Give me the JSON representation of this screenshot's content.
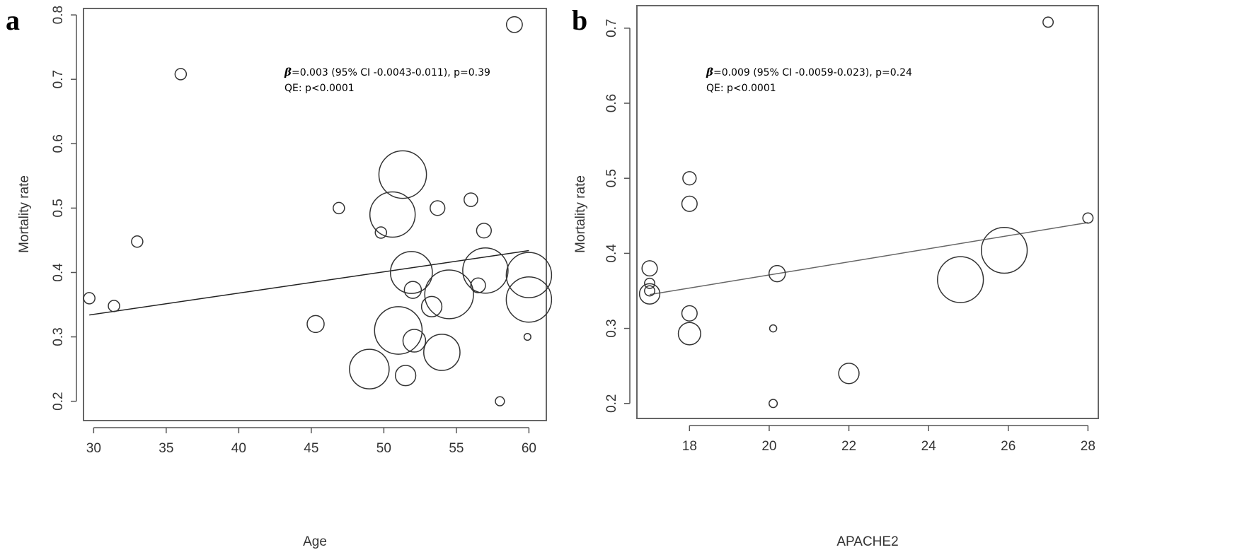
{
  "chart_data": [
    {
      "type": "scatter",
      "panel_label": "a",
      "xlabel": "Age",
      "ylabel": "Mortality rate",
      "xlim": [
        29.3,
        61.2
      ],
      "ylim": [
        0.17,
        0.81
      ],
      "xticks": [
        30,
        35,
        40,
        45,
        50,
        55,
        60
      ],
      "yticks": [
        0.2,
        0.3,
        0.4,
        0.5,
        0.6,
        0.7,
        0.8
      ],
      "annotation": {
        "beta_symbol": "β",
        "beta_text": "=0.003 (95% CI -0.0043-0.011), p=0.39",
        "qe_text": "QE: p<0.0001"
      },
      "fit_line": {
        "x": [
          29.7,
          60.0
        ],
        "y": [
          0.334,
          0.434
        ],
        "color": "#222222"
      },
      "points": [
        {
          "x": 29.7,
          "y": 0.36,
          "size": 1.0
        },
        {
          "x": 31.4,
          "y": 0.348,
          "size": 1.0
        },
        {
          "x": 33.0,
          "y": 0.448,
          "size": 1.0
        },
        {
          "x": 36.0,
          "y": 0.708,
          "size": 1.0
        },
        {
          "x": 45.3,
          "y": 0.32,
          "size": 1.5
        },
        {
          "x": 46.9,
          "y": 0.5,
          "size": 1.0
        },
        {
          "x": 49.0,
          "y": 0.25,
          "size": 3.5
        },
        {
          "x": 49.8,
          "y": 0.462,
          "size": 1.0
        },
        {
          "x": 50.6,
          "y": 0.49,
          "size": 4.0
        },
        {
          "x": 51.0,
          "y": 0.31,
          "size": 4.2
        },
        {
          "x": 51.3,
          "y": 0.552,
          "size": 4.2
        },
        {
          "x": 51.5,
          "y": 0.24,
          "size": 1.8
        },
        {
          "x": 51.9,
          "y": 0.4,
          "size": 3.7
        },
        {
          "x": 52.0,
          "y": 0.373,
          "size": 1.5
        },
        {
          "x": 52.1,
          "y": 0.294,
          "size": 2.0
        },
        {
          "x": 53.3,
          "y": 0.347,
          "size": 1.8
        },
        {
          "x": 53.7,
          "y": 0.5,
          "size": 1.3
        },
        {
          "x": 54.0,
          "y": 0.276,
          "size": 3.2
        },
        {
          "x": 54.5,
          "y": 0.366,
          "size": 4.3
        },
        {
          "x": 56.0,
          "y": 0.513,
          "size": 1.2
        },
        {
          "x": 56.5,
          "y": 0.38,
          "size": 1.3
        },
        {
          "x": 56.9,
          "y": 0.465,
          "size": 1.3
        },
        {
          "x": 57.0,
          "y": 0.403,
          "size": 4.0
        },
        {
          "x": 58.0,
          "y": 0.2,
          "size": 0.8
        },
        {
          "x": 59.0,
          "y": 0.785,
          "size": 1.4
        },
        {
          "x": 59.9,
          "y": 0.3,
          "size": 0.6
        },
        {
          "x": 60.0,
          "y": 0.396,
          "size": 4.0
        },
        {
          "x": 60.0,
          "y": 0.358,
          "size": 4.0
        }
      ]
    },
    {
      "type": "scatter",
      "panel_label": "b",
      "xlabel": "APACHE2",
      "ylabel": "Mortality rate",
      "xlim": [
        16.68,
        28.26
      ],
      "ylim": [
        0.18,
        0.73
      ],
      "xticks": [
        18,
        20,
        22,
        24,
        26,
        28
      ],
      "yticks": [
        0.2,
        0.3,
        0.4,
        0.5,
        0.6,
        0.7
      ],
      "annotation": {
        "beta_symbol": "β",
        "beta_text": "=0.009 (95% CI -0.0059-0.023), p=0.24",
        "qe_text": "QE: p<0.0001"
      },
      "fit_line": {
        "x": [
          17.0,
          28.0
        ],
        "y": [
          0.345,
          0.441
        ],
        "color": "#666666"
      },
      "points": [
        {
          "x": 17.0,
          "y": 0.38,
          "size": 1.5
        },
        {
          "x": 17.0,
          "y": 0.36,
          "size": 1.0
        },
        {
          "x": 17.0,
          "y": 0.35,
          "size": 1.0
        },
        {
          "x": 17.0,
          "y": 0.346,
          "size": 2.0
        },
        {
          "x": 18.0,
          "y": 0.5,
          "size": 1.3
        },
        {
          "x": 18.0,
          "y": 0.466,
          "size": 1.5
        },
        {
          "x": 18.0,
          "y": 0.32,
          "size": 1.5
        },
        {
          "x": 18.0,
          "y": 0.293,
          "size": 2.2
        },
        {
          "x": 20.1,
          "y": 0.3,
          "size": 0.7
        },
        {
          "x": 20.1,
          "y": 0.2,
          "size": 0.8
        },
        {
          "x": 20.2,
          "y": 0.373,
          "size": 1.6
        },
        {
          "x": 22.0,
          "y": 0.24,
          "size": 2.0
        },
        {
          "x": 24.8,
          "y": 0.365,
          "size": 4.5
        },
        {
          "x": 25.9,
          "y": 0.404,
          "size": 4.5
        },
        {
          "x": 27.0,
          "y": 0.708,
          "size": 1.0
        },
        {
          "x": 28.0,
          "y": 0.447,
          "size": 1.0
        }
      ]
    }
  ]
}
